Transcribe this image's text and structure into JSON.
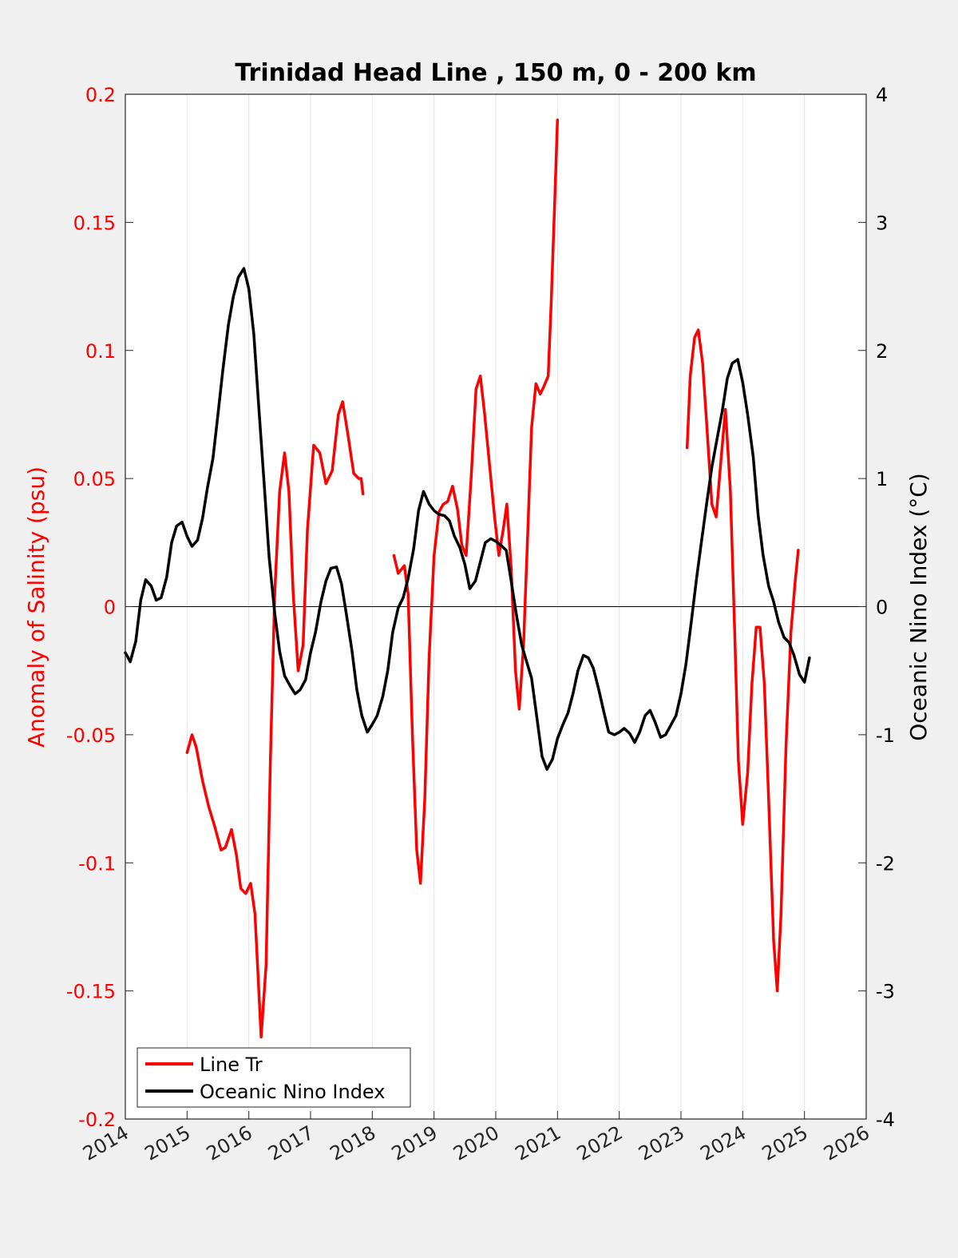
{
  "chart_data": {
    "type": "line",
    "title": "Trinidad Head Line , 150 m, 0 - 200 km",
    "ylabel_left": "Anomaly of Salinity (psu)",
    "ylabel_right": "Oceanic Nino Index (°C)",
    "xlabel": "",
    "xlim": [
      2014,
      2026
    ],
    "ylim_left": [
      -0.2,
      0.2
    ],
    "ylim_right": [
      -4,
      4
    ],
    "x_ticks": [
      2014,
      2015,
      2016,
      2017,
      2018,
      2019,
      2020,
      2021,
      2022,
      2023,
      2024,
      2025,
      2026
    ],
    "x_tick_labels": [
      "2014",
      "2015",
      "2016",
      "2017",
      "2018",
      "2019",
      "2020",
      "2021",
      "2022",
      "2023",
      "2024",
      "2025",
      "2026"
    ],
    "y_ticks_left": [
      -0.2,
      -0.15,
      -0.1,
      -0.05,
      0,
      0.05,
      0.1,
      0.15,
      0.2
    ],
    "y_tick_labels_left": [
      "-0.2",
      "-0.15",
      "-0.1",
      "-0.05",
      "0",
      "0.05",
      "0.1",
      "0.15",
      "0.2"
    ],
    "y_ticks_right": [
      -4,
      -3,
      -2,
      -1,
      0,
      1,
      2,
      3,
      4
    ],
    "y_tick_labels_right": [
      "-4",
      "-3",
      "-2",
      "-1",
      "0",
      "1",
      "2",
      "3",
      "4"
    ],
    "grid": "vertical",
    "legend_position": "bottom-left",
    "series": [
      {
        "name": "Line Tr",
        "axis": "left",
        "color": "#ff0000",
        "segments": [
          [
            [
              2015.0,
              -0.057
            ],
            [
              2015.08,
              -0.05
            ],
            [
              2015.15,
              -0.055
            ],
            [
              2015.25,
              -0.068
            ],
            [
              2015.35,
              -0.078
            ],
            [
              2015.45,
              -0.086
            ],
            [
              2015.55,
              -0.095
            ],
            [
              2015.62,
              -0.094
            ],
            [
              2015.72,
              -0.087
            ],
            [
              2015.8,
              -0.097
            ],
            [
              2015.87,
              -0.11
            ],
            [
              2015.95,
              -0.112
            ],
            [
              2016.03,
              -0.108
            ],
            [
              2016.1,
              -0.12
            ],
            [
              2016.2,
              -0.168
            ],
            [
              2016.28,
              -0.14
            ],
            [
              2016.35,
              -0.06
            ],
            [
              2016.42,
              0.005
            ],
            [
              2016.5,
              0.045
            ],
            [
              2016.58,
              0.06
            ],
            [
              2016.65,
              0.045
            ],
            [
              2016.72,
              0.005
            ],
            [
              2016.8,
              -0.025
            ],
            [
              2016.88,
              -0.015
            ],
            [
              2016.95,
              0.03
            ],
            [
              2017.05,
              0.063
            ],
            [
              2017.15,
              0.06
            ],
            [
              2017.25,
              0.048
            ],
            [
              2017.35,
              0.053
            ],
            [
              2017.45,
              0.075
            ],
            [
              2017.52,
              0.08
            ],
            [
              2017.6,
              0.068
            ],
            [
              2017.7,
              0.052
            ],
            [
              2017.78,
              0.05
            ],
            [
              2017.82,
              0.05
            ],
            [
              2017.85,
              0.044
            ]
          ],
          [
            [
              2018.35,
              0.02
            ],
            [
              2018.42,
              0.013
            ],
            [
              2018.52,
              0.016
            ],
            [
              2018.58,
              0.005
            ],
            [
              2018.65,
              -0.05
            ],
            [
              2018.72,
              -0.095
            ],
            [
              2018.78,
              -0.108
            ],
            [
              2018.85,
              -0.075
            ],
            [
              2018.92,
              -0.02
            ],
            [
              2019.0,
              0.02
            ],
            [
              2019.08,
              0.037
            ],
            [
              2019.15,
              0.04
            ],
            [
              2019.22,
              0.041
            ],
            [
              2019.3,
              0.047
            ],
            [
              2019.38,
              0.038
            ],
            [
              2019.45,
              0.024
            ],
            [
              2019.52,
              0.02
            ],
            [
              2019.6,
              0.05
            ],
            [
              2019.68,
              0.085
            ],
            [
              2019.75,
              0.09
            ],
            [
              2019.82,
              0.075
            ],
            [
              2019.9,
              0.055
            ],
            [
              2019.98,
              0.035
            ],
            [
              2020.05,
              0.02
            ],
            [
              2020.12,
              0.03
            ],
            [
              2020.18,
              0.04
            ],
            [
              2020.25,
              0.015
            ],
            [
              2020.32,
              -0.025
            ],
            [
              2020.38,
              -0.04
            ],
            [
              2020.45,
              -0.015
            ],
            [
              2020.52,
              0.03
            ],
            [
              2020.58,
              0.07
            ],
            [
              2020.65,
              0.087
            ],
            [
              2020.72,
              0.083
            ],
            [
              2020.78,
              0.086
            ],
            [
              2020.85,
              0.09
            ],
            [
              2020.9,
              0.12
            ],
            [
              2020.95,
              0.155
            ],
            [
              2021.0,
              0.19
            ]
          ],
          [
            [
              2023.1,
              0.062
            ],
            [
              2023.15,
              0.09
            ],
            [
              2023.22,
              0.105
            ],
            [
              2023.28,
              0.108
            ],
            [
              2023.35,
              0.095
            ],
            [
              2023.42,
              0.07
            ],
            [
              2023.5,
              0.04
            ],
            [
              2023.57,
              0.035
            ],
            [
              2023.64,
              0.055
            ],
            [
              2023.72,
              0.077
            ],
            [
              2023.8,
              0.045
            ],
            [
              2023.87,
              -0.01
            ],
            [
              2023.93,
              -0.06
            ],
            [
              2024.0,
              -0.085
            ],
            [
              2024.08,
              -0.065
            ],
            [
              2024.15,
              -0.03
            ],
            [
              2024.22,
              -0.008
            ],
            [
              2024.28,
              -0.008
            ],
            [
              2024.35,
              -0.03
            ],
            [
              2024.42,
              -0.075
            ],
            [
              2024.5,
              -0.13
            ],
            [
              2024.56,
              -0.15
            ],
            [
              2024.62,
              -0.12
            ],
            [
              2024.7,
              -0.055
            ],
            [
              2024.78,
              -0.01
            ],
            [
              2024.85,
              0.01
            ],
            [
              2024.9,
              0.022
            ]
          ]
        ]
      },
      {
        "name": "Oceanic Nino Index",
        "axis": "right",
        "color": "#000000",
        "segments": [
          [
            [
              2014.0,
              -0.36
            ],
            [
              2014.08,
              -0.43
            ],
            [
              2014.17,
              -0.27
            ],
            [
              2014.25,
              0.05
            ],
            [
              2014.33,
              0.21
            ],
            [
              2014.42,
              0.16
            ],
            [
              2014.5,
              0.05
            ],
            [
              2014.58,
              0.07
            ],
            [
              2014.67,
              0.23
            ],
            [
              2014.75,
              0.5
            ],
            [
              2014.83,
              0.63
            ],
            [
              2014.92,
              0.66
            ],
            [
              2015.0,
              0.55
            ],
            [
              2015.08,
              0.47
            ],
            [
              2015.17,
              0.52
            ],
            [
              2015.25,
              0.69
            ],
            [
              2015.33,
              0.93
            ],
            [
              2015.42,
              1.16
            ],
            [
              2015.5,
              1.5
            ],
            [
              2015.58,
              1.85
            ],
            [
              2015.67,
              2.2
            ],
            [
              2015.75,
              2.42
            ],
            [
              2015.83,
              2.57
            ],
            [
              2015.92,
              2.64
            ],
            [
              2016.0,
              2.48
            ],
            [
              2016.08,
              2.13
            ],
            [
              2016.17,
              1.5
            ],
            [
              2016.25,
              0.95
            ],
            [
              2016.33,
              0.38
            ],
            [
              2016.42,
              -0.05
            ],
            [
              2016.5,
              -0.35
            ],
            [
              2016.58,
              -0.54
            ],
            [
              2016.67,
              -0.62
            ],
            [
              2016.75,
              -0.68
            ],
            [
              2016.83,
              -0.65
            ],
            [
              2016.92,
              -0.57
            ],
            [
              2017.0,
              -0.36
            ],
            [
              2017.08,
              -0.2
            ],
            [
              2017.17,
              0.04
            ],
            [
              2017.25,
              0.2
            ],
            [
              2017.33,
              0.3
            ],
            [
              2017.42,
              0.31
            ],
            [
              2017.5,
              0.18
            ],
            [
              2017.58,
              -0.06
            ],
            [
              2017.67,
              -0.34
            ],
            [
              2017.75,
              -0.65
            ],
            [
              2017.83,
              -0.85
            ],
            [
              2017.92,
              -0.98
            ],
            [
              2018.0,
              -0.92
            ],
            [
              2018.08,
              -0.85
            ],
            [
              2018.17,
              -0.7
            ],
            [
              2018.25,
              -0.5
            ],
            [
              2018.33,
              -0.2
            ],
            [
              2018.42,
              -0.01
            ],
            [
              2018.5,
              0.07
            ],
            [
              2018.58,
              0.22
            ],
            [
              2018.67,
              0.45
            ],
            [
              2018.75,
              0.75
            ],
            [
              2018.83,
              0.9
            ],
            [
              2018.92,
              0.8
            ],
            [
              2019.0,
              0.75
            ],
            [
              2019.08,
              0.72
            ],
            [
              2019.17,
              0.71
            ],
            [
              2019.25,
              0.67
            ],
            [
              2019.33,
              0.55
            ],
            [
              2019.42,
              0.46
            ],
            [
              2019.5,
              0.33
            ],
            [
              2019.58,
              0.14
            ],
            [
              2019.67,
              0.2
            ],
            [
              2019.75,
              0.35
            ],
            [
              2019.83,
              0.5
            ],
            [
              2019.92,
              0.53
            ],
            [
              2020.0,
              0.51
            ],
            [
              2020.08,
              0.48
            ],
            [
              2020.17,
              0.44
            ],
            [
              2020.25,
              0.2
            ],
            [
              2020.33,
              -0.05
            ],
            [
              2020.42,
              -0.3
            ],
            [
              2020.5,
              -0.43
            ],
            [
              2020.58,
              -0.56
            ],
            [
              2020.67,
              -0.88
            ],
            [
              2020.75,
              -1.17
            ],
            [
              2020.83,
              -1.27
            ],
            [
              2020.92,
              -1.19
            ],
            [
              2021.0,
              -1.03
            ],
            [
              2021.08,
              -0.93
            ],
            [
              2021.17,
              -0.83
            ],
            [
              2021.25,
              -0.68
            ],
            [
              2021.33,
              -0.5
            ],
            [
              2021.42,
              -0.38
            ],
            [
              2021.5,
              -0.4
            ],
            [
              2021.58,
              -0.48
            ],
            [
              2021.67,
              -0.65
            ],
            [
              2021.75,
              -0.82
            ],
            [
              2021.83,
              -0.98
            ],
            [
              2021.92,
              -1.0
            ],
            [
              2022.0,
              -0.98
            ],
            [
              2022.08,
              -0.95
            ],
            [
              2022.17,
              -0.99
            ],
            [
              2022.25,
              -1.06
            ],
            [
              2022.33,
              -0.98
            ],
            [
              2022.42,
              -0.85
            ],
            [
              2022.5,
              -0.81
            ],
            [
              2022.58,
              -0.9
            ],
            [
              2022.67,
              -1.02
            ],
            [
              2022.75,
              -1.0
            ],
            [
              2022.83,
              -0.93
            ],
            [
              2022.92,
              -0.85
            ],
            [
              2023.0,
              -0.68
            ],
            [
              2023.08,
              -0.45
            ],
            [
              2023.17,
              -0.11
            ],
            [
              2023.25,
              0.21
            ],
            [
              2023.33,
              0.5
            ],
            [
              2023.42,
              0.82
            ],
            [
              2023.5,
              1.09
            ],
            [
              2023.58,
              1.3
            ],
            [
              2023.67,
              1.53
            ],
            [
              2023.75,
              1.78
            ],
            [
              2023.83,
              1.9
            ],
            [
              2023.92,
              1.93
            ],
            [
              2024.0,
              1.75
            ],
            [
              2024.08,
              1.5
            ],
            [
              2024.17,
              1.17
            ],
            [
              2024.25,
              0.71
            ],
            [
              2024.33,
              0.4
            ],
            [
              2024.42,
              0.16
            ],
            [
              2024.5,
              0.04
            ],
            [
              2024.58,
              -0.12
            ],
            [
              2024.67,
              -0.24
            ],
            [
              2024.75,
              -0.28
            ],
            [
              2024.83,
              -0.38
            ],
            [
              2024.92,
              -0.53
            ],
            [
              2025.0,
              -0.59
            ],
            [
              2025.08,
              -0.4
            ]
          ]
        ]
      }
    ]
  }
}
